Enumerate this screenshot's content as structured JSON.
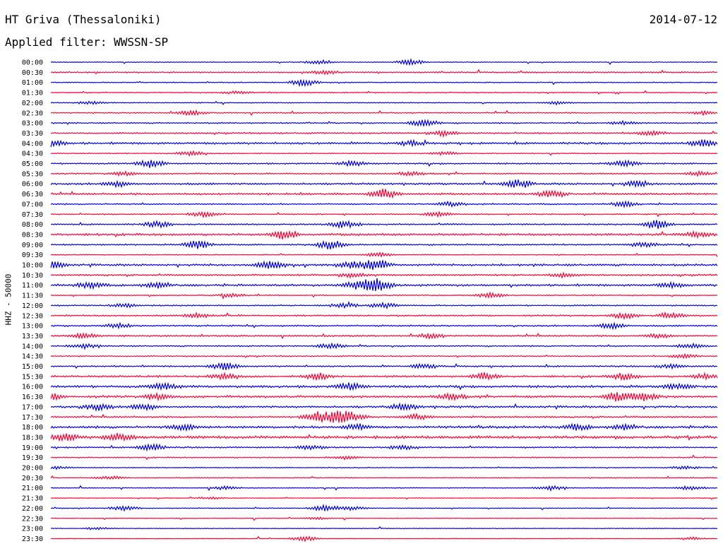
{
  "header": {
    "station": "HT Griva (Thessaloniki)",
    "date": "2014-07-12",
    "filter": "Applied filter: WWSSN-SP"
  },
  "scale_label": "HHZ - 50000",
  "colors": {
    "even_trace": "#0000e6",
    "odd_trace": "#ff0033"
  },
  "chart_data": {
    "type": "line",
    "title": "HT Griva (Thessaloniki)",
    "subtitle": "Applied filter: WWSSN-SP",
    "ylabel": "HHZ - 50000",
    "xlabel": "",
    "row_minutes": 30,
    "x_range_minutes": [
      0,
      30
    ],
    "y_tick_labels": [
      "00:00",
      "00:30",
      "01:00",
      "01:30",
      "02:00",
      "02:30",
      "03:00",
      "03:30",
      "04:00",
      "04:30",
      "05:00",
      "05:30",
      "06:00",
      "06:30",
      "07:00",
      "07:30",
      "08:00",
      "08:30",
      "09:00",
      "09:30",
      "10:00",
      "10:30",
      "11:00",
      "11:30",
      "12:00",
      "12:30",
      "13:00",
      "13:30",
      "14:00",
      "14:30",
      "15:00",
      "15:30",
      "16:00",
      "16:30",
      "17:00",
      "17:30",
      "18:00",
      "18:30",
      "19:00",
      "19:30",
      "20:00",
      "20:30",
      "21:00",
      "21:30",
      "22:00",
      "22:30",
      "23:00",
      "23:30"
    ],
    "series": [
      {
        "noise": 0.4,
        "events": [
          [
            0.4,
            0.6
          ],
          [
            0.54,
            1.1
          ]
        ]
      },
      {
        "noise": 0.7,
        "events": [
          [
            0.41,
            0.7
          ]
        ]
      },
      {
        "noise": 0.5,
        "events": [
          [
            0.38,
            1.3
          ]
        ]
      },
      {
        "noise": 0.6,
        "events": [
          [
            0.28,
            0.5
          ]
        ]
      },
      {
        "noise": 0.5,
        "events": [
          [
            0.06,
            0.5
          ],
          [
            0.76,
            0.6
          ]
        ]
      },
      {
        "noise": 0.6,
        "events": [
          [
            0.21,
            0.8
          ],
          [
            0.98,
            0.6
          ]
        ]
      },
      {
        "noise": 0.7,
        "events": [
          [
            0.56,
            1.3
          ],
          [
            0.86,
            0.6
          ]
        ]
      },
      {
        "noise": 0.8,
        "events": [
          [
            0.59,
            0.9
          ],
          [
            0.9,
            0.8
          ]
        ]
      },
      {
        "noise": 1.1,
        "events": [
          [
            0.0,
            1.1
          ],
          [
            0.54,
            0.8
          ],
          [
            0.98,
            1.3
          ]
        ]
      },
      {
        "noise": 0.5,
        "events": [
          [
            0.21,
            0.8
          ],
          [
            0.59,
            0.7
          ]
        ]
      },
      {
        "noise": 0.8,
        "events": [
          [
            0.15,
            1.4
          ],
          [
            0.45,
            1.0
          ],
          [
            0.86,
            1.1
          ]
        ]
      },
      {
        "noise": 0.7,
        "events": [
          [
            0.11,
            0.7
          ],
          [
            0.54,
            0.7
          ],
          [
            0.97,
            0.8
          ]
        ]
      },
      {
        "noise": 1.0,
        "events": [
          [
            0.1,
            1.0
          ],
          [
            0.7,
            1.4
          ],
          [
            0.88,
            1.0
          ]
        ]
      },
      {
        "noise": 1.0,
        "events": [
          [
            0.5,
            1.7
          ],
          [
            0.75,
            1.2
          ]
        ]
      },
      {
        "noise": 0.7,
        "events": [
          [
            0.6,
            0.7
          ],
          [
            0.86,
            0.9
          ]
        ]
      },
      {
        "noise": 0.6,
        "events": [
          [
            0.23,
            0.9
          ],
          [
            0.58,
            0.8
          ]
        ]
      },
      {
        "noise": 0.8,
        "events": [
          [
            0.16,
            1.0
          ],
          [
            0.44,
            1.3
          ],
          [
            0.91,
            1.6
          ]
        ]
      },
      {
        "noise": 1.2,
        "events": [
          [
            0.35,
            1.7
          ],
          [
            0.97,
            1.0
          ]
        ]
      },
      {
        "noise": 0.8,
        "events": [
          [
            0.22,
            1.5
          ],
          [
            0.42,
            1.6
          ],
          [
            0.89,
            0.8
          ]
        ]
      },
      {
        "noise": 0.5,
        "events": [
          [
            0.49,
            0.8
          ]
        ]
      },
      {
        "noise": 1.1,
        "events": [
          [
            0.0,
            1.3
          ],
          [
            0.33,
            1.4
          ],
          [
            0.45,
            1.2
          ],
          [
            0.49,
            2.0
          ]
        ]
      },
      {
        "noise": 0.9,
        "events": [
          [
            0.45,
            0.8
          ],
          [
            0.77,
            0.8
          ]
        ]
      },
      {
        "noise": 1.1,
        "events": [
          [
            0.06,
            1.0
          ],
          [
            0.16,
            1.0
          ],
          [
            0.46,
            1.4
          ],
          [
            0.49,
            2.4
          ],
          [
            0.93,
            0.8
          ]
        ]
      },
      {
        "noise": 0.6,
        "events": [
          [
            0.27,
            0.6
          ],
          [
            0.66,
            0.9
          ]
        ]
      },
      {
        "noise": 0.7,
        "events": [
          [
            0.11,
            0.7
          ],
          [
            0.44,
            0.8
          ],
          [
            0.5,
            0.9
          ]
        ]
      },
      {
        "noise": 0.8,
        "events": [
          [
            0.22,
            0.8
          ],
          [
            0.86,
            1.0
          ],
          [
            0.93,
            1.0
          ]
        ]
      },
      {
        "noise": 0.8,
        "events": [
          [
            0.1,
            0.8
          ],
          [
            0.84,
            1.1
          ]
        ]
      },
      {
        "noise": 0.8,
        "events": [
          [
            0.05,
            1.0
          ],
          [
            0.57,
            0.8
          ],
          [
            0.91,
            0.7
          ]
        ]
      },
      {
        "noise": 0.7,
        "events": [
          [
            0.05,
            0.8
          ],
          [
            0.42,
            0.9
          ],
          [
            0.96,
            0.8
          ]
        ]
      },
      {
        "noise": 0.6,
        "events": [
          [
            0.95,
            0.7
          ]
        ]
      },
      {
        "noise": 0.8,
        "events": [
          [
            0.26,
            1.3
          ],
          [
            0.56,
            0.9
          ],
          [
            0.93,
            0.7
          ]
        ]
      },
      {
        "noise": 1.0,
        "events": [
          [
            0.26,
            1.0
          ],
          [
            0.4,
            1.2
          ],
          [
            0.65,
            1.3
          ],
          [
            0.86,
            1.2
          ],
          [
            0.98,
            0.9
          ]
        ]
      },
      {
        "noise": 1.3,
        "events": [
          [
            0.17,
            1.0
          ],
          [
            0.45,
            1.2
          ],
          [
            0.94,
            0.9
          ]
        ]
      },
      {
        "noise": 1.2,
        "events": [
          [
            0.0,
            1.1
          ],
          [
            0.16,
            1.0
          ],
          [
            0.6,
            1.0
          ],
          [
            0.85,
            1.5
          ],
          [
            0.89,
            1.3
          ]
        ]
      },
      {
        "noise": 1.1,
        "events": [
          [
            0.07,
            1.2
          ],
          [
            0.14,
            1.1
          ],
          [
            0.53,
            1.2
          ]
        ]
      },
      {
        "noise": 0.9,
        "events": [
          [
            0.4,
            1.8
          ],
          [
            0.43,
            1.6
          ],
          [
            0.45,
            1.4
          ],
          [
            0.55,
            0.9
          ]
        ]
      },
      {
        "noise": 1.2,
        "events": [
          [
            0.2,
            1.0
          ],
          [
            0.46,
            1.1
          ],
          [
            0.79,
            1.0
          ],
          [
            0.86,
            0.9
          ]
        ]
      },
      {
        "noise": 1.5,
        "events": [
          [
            0.02,
            1.2
          ],
          [
            0.1,
            1.2
          ]
        ]
      },
      {
        "noise": 0.8,
        "events": [
          [
            0.15,
            1.2
          ],
          [
            0.39,
            0.8
          ],
          [
            0.53,
            0.7
          ]
        ]
      },
      {
        "noise": 0.6,
        "events": [
          [
            0.44,
            0.6
          ]
        ]
      },
      {
        "noise": 0.5,
        "events": [
          [
            0.01,
            0.5
          ],
          [
            0.95,
            0.5
          ]
        ]
      },
      {
        "noise": 0.5,
        "events": [
          [
            0.09,
            0.6
          ]
        ]
      },
      {
        "noise": 0.4,
        "events": [
          [
            0.26,
            0.6
          ],
          [
            0.75,
            0.8
          ],
          [
            0.96,
            0.7
          ]
        ]
      },
      {
        "noise": 0.3,
        "events": [
          [
            0.24,
            0.4
          ]
        ]
      },
      {
        "noise": 0.4,
        "events": [
          [
            0.11,
            0.8
          ],
          [
            0.41,
            1.0
          ],
          [
            0.45,
            0.7
          ]
        ]
      },
      {
        "noise": 0.3,
        "events": [
          [
            0.4,
            0.4
          ]
        ]
      },
      {
        "noise": 0.4,
        "events": [
          [
            0.07,
            0.4
          ]
        ]
      },
      {
        "noise": 0.3,
        "events": [
          [
            0.38,
            0.9
          ],
          [
            0.96,
            0.5
          ]
        ]
      }
    ]
  }
}
